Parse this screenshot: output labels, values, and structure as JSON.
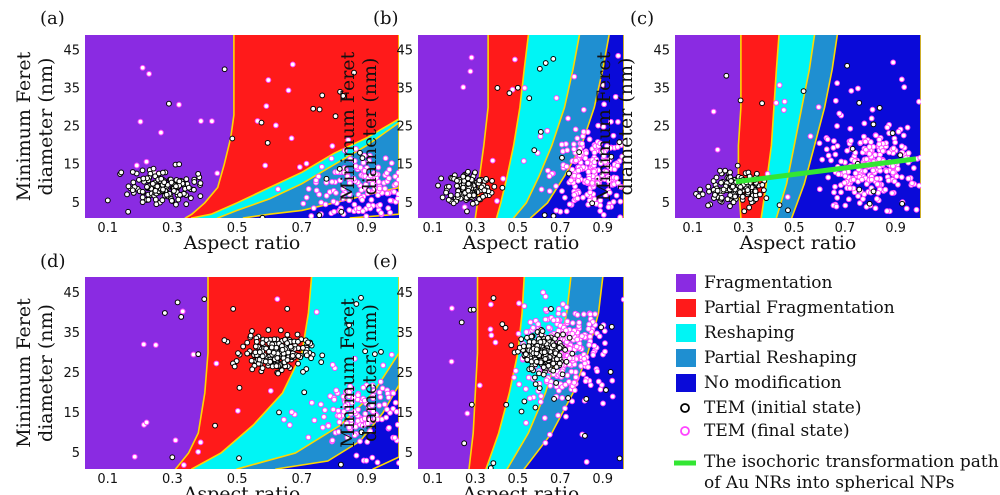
{
  "chart_data": [
    {
      "type": "heatmap",
      "panel_label": "(a)",
      "xlabel": "Aspect ratio",
      "ylabel": "Minimum Feret diameter (nm)",
      "xlim": [
        0.03,
        1.0
      ],
      "ylim": [
        1,
        49
      ],
      "x_ticks": [
        0.1,
        0.3,
        0.5,
        0.7,
        0.9
      ],
      "y_ticks": [
        5,
        15,
        25,
        35,
        45
      ],
      "regions": [
        {
          "class": "Fragmentation",
          "boundary": [
            [
              0.49,
              49
            ],
            [
              0.49,
              28
            ],
            [
              0.48,
              22
            ],
            [
              0.46,
              15
            ],
            [
              0.44,
              9
            ],
            [
              0.4,
              5
            ],
            [
              0.36,
              2
            ],
            [
              0.34,
              1
            ]
          ]
        },
        {
          "class": "Partial Fragmentation",
          "boundary": [
            [
              1.0,
              49
            ],
            [
              1.0,
              27
            ],
            [
              0.9,
              22
            ],
            [
              0.8,
              18
            ],
            [
              0.7,
              13
            ],
            [
              0.6,
              9
            ],
            [
              0.5,
              5
            ],
            [
              0.42,
              2
            ],
            [
              0.36,
              1
            ]
          ]
        },
        {
          "class": "Reshaping",
          "boundary": [
            [
              1.0,
              26
            ],
            [
              0.9,
              20
            ],
            [
              0.8,
              15
            ],
            [
              0.7,
              10
            ],
            [
              0.6,
              6
            ],
            [
              0.5,
              3
            ],
            [
              0.44,
              1
            ]
          ]
        },
        {
          "class": "Partial Reshaping",
          "boundary": [
            [
              1.0,
              9
            ],
            [
              0.9,
              7
            ],
            [
              0.8,
              5
            ],
            [
              0.7,
              3
            ],
            [
              0.6,
              2
            ],
            [
              0.52,
              1
            ]
          ]
        },
        {
          "class": "No modification",
          "boundary": [
            [
              1.0,
              2
            ],
            [
              0.85,
              1
            ]
          ]
        }
      ],
      "tem_initial_cluster": {
        "x_center": 0.27,
        "y_center": 9,
        "n": 150
      },
      "tem_final_cluster": {
        "x_center": 0.9,
        "y_center": 9,
        "n": 180
      }
    },
    {
      "type": "heatmap",
      "panel_label": "(b)",
      "xlabel": "Aspect ratio",
      "ylabel": "Minimum Feret diameter (nm)",
      "xlim": [
        0.03,
        1.0
      ],
      "ylim": [
        1,
        49
      ],
      "x_ticks": [
        0.1,
        0.3,
        0.5,
        0.7,
        0.9
      ],
      "y_ticks": [
        5,
        15,
        25,
        35,
        45
      ],
      "regions": [
        {
          "class": "Fragmentation",
          "boundary": [
            [
              0.36,
              49
            ],
            [
              0.36,
              30
            ],
            [
              0.34,
              20
            ],
            [
              0.32,
              12
            ],
            [
              0.31,
              5
            ],
            [
              0.3,
              1
            ]
          ]
        },
        {
          "class": "Partial Fragmentation",
          "boundary": [
            [
              0.55,
              49
            ],
            [
              0.53,
              40
            ],
            [
              0.51,
              30
            ],
            [
              0.48,
              20
            ],
            [
              0.45,
              12
            ],
            [
              0.42,
              5
            ],
            [
              0.4,
              1
            ]
          ]
        },
        {
          "class": "Reshaping",
          "boundary": [
            [
              0.79,
              49
            ],
            [
              0.76,
              40
            ],
            [
              0.72,
              30
            ],
            [
              0.66,
              20
            ],
            [
              0.6,
              12
            ],
            [
              0.54,
              5
            ],
            [
              0.48,
              1
            ]
          ]
        },
        {
          "class": "Partial Reshaping",
          "boundary": [
            [
              0.93,
              49
            ],
            [
              0.9,
              40
            ],
            [
              0.86,
              30
            ],
            [
              0.8,
              20
            ],
            [
              0.72,
              12
            ],
            [
              0.64,
              5
            ],
            [
              0.56,
              1
            ]
          ]
        },
        {
          "class": "No modification",
          "boundary": [
            [
              1.0,
              49
            ],
            [
              1.0,
              1
            ]
          ]
        }
      ],
      "tem_initial_cluster": {
        "x_center": 0.27,
        "y_center": 9,
        "n": 150
      },
      "tem_final_cluster": {
        "x_center": 0.85,
        "y_center": 13,
        "n": 220
      }
    },
    {
      "type": "heatmap",
      "panel_label": "(c)",
      "xlabel": "Aspect ratio",
      "ylabel": "Minimum Feret diameter (nm)",
      "xlim": [
        0.03,
        1.0
      ],
      "ylim": [
        1,
        49
      ],
      "x_ticks": [
        0.1,
        0.3,
        0.5,
        0.7,
        0.9
      ],
      "y_ticks": [
        5,
        15,
        25,
        35,
        45
      ],
      "regions": [
        {
          "class": "Fragmentation",
          "boundary": [
            [
              0.29,
              49
            ],
            [
              0.29,
              30
            ],
            [
              0.28,
              20
            ],
            [
              0.28,
              10
            ],
            [
              0.29,
              1
            ]
          ]
        },
        {
          "class": "Partial Fragmentation",
          "boundary": [
            [
              0.44,
              49
            ],
            [
              0.43,
              40
            ],
            [
              0.42,
              30
            ],
            [
              0.41,
              20
            ],
            [
              0.39,
              10
            ],
            [
              0.37,
              1
            ]
          ]
        },
        {
          "class": "Reshaping",
          "boundary": [
            [
              0.58,
              49
            ],
            [
              0.56,
              40
            ],
            [
              0.53,
              30
            ],
            [
              0.5,
              20
            ],
            [
              0.47,
              10
            ],
            [
              0.43,
              1
            ]
          ]
        },
        {
          "class": "Partial Reshaping",
          "boundary": [
            [
              0.67,
              49
            ],
            [
              0.65,
              40
            ],
            [
              0.62,
              30
            ],
            [
              0.58,
              20
            ],
            [
              0.54,
              10
            ],
            [
              0.49,
              1
            ]
          ]
        },
        {
          "class": "No modification",
          "boundary": [
            [
              1.0,
              49
            ],
            [
              1.0,
              1
            ]
          ]
        }
      ],
      "isochoric_path": [
        [
          0.27,
          10.5
        ],
        [
          0.98,
          16.5
        ]
      ],
      "tem_initial_cluster": {
        "x_center": 0.27,
        "y_center": 9,
        "n": 150
      },
      "tem_final_cluster": {
        "x_center": 0.8,
        "y_center": 14,
        "n": 240
      }
    },
    {
      "type": "heatmap",
      "panel_label": "(d)",
      "xlabel": "Aspect ratio",
      "ylabel": "Minimum Feret diameter (nm)",
      "xlim": [
        0.03,
        1.0
      ],
      "ylim": [
        1,
        49
      ],
      "x_ticks": [
        0.1,
        0.3,
        0.5,
        0.7,
        0.9
      ],
      "y_ticks": [
        5,
        15,
        25,
        35,
        45
      ],
      "regions": [
        {
          "class": "Fragmentation",
          "boundary": [
            [
              0.41,
              49
            ],
            [
              0.41,
              30
            ],
            [
              0.4,
              20
            ],
            [
              0.38,
              10
            ],
            [
              0.35,
              5
            ],
            [
              0.31,
              1
            ]
          ]
        },
        {
          "class": "Partial Fragmentation",
          "boundary": [
            [
              0.73,
              49
            ],
            [
              0.72,
              40
            ],
            [
              0.7,
              30
            ],
            [
              0.64,
              20
            ],
            [
              0.55,
              12
            ],
            [
              0.45,
              5
            ],
            [
              0.36,
              1
            ]
          ]
        },
        {
          "class": "Reshaping",
          "boundary": [
            [
              1.0,
              49
            ],
            [
              1.0,
              30
            ],
            [
              0.92,
              20
            ],
            [
              0.82,
              12
            ],
            [
              0.68,
              5
            ],
            [
              0.5,
              1
            ]
          ]
        },
        {
          "class": "Partial Reshaping",
          "boundary": [
            [
              1.0,
              22
            ],
            [
              0.95,
              15
            ],
            [
              0.88,
              8
            ],
            [
              0.78,
              3
            ],
            [
              0.62,
              1
            ]
          ]
        },
        {
          "class": "No modification",
          "boundary": [
            [
              1.0,
              4
            ],
            [
              0.92,
              1
            ]
          ]
        }
      ],
      "tem_initial_cluster": {
        "x_center": 0.62,
        "y_center": 30,
        "n": 200
      },
      "tem_final_cluster": {
        "x_center": 0.9,
        "y_center": 15,
        "n": 160
      }
    },
    {
      "type": "heatmap",
      "panel_label": "(e)",
      "xlabel": "Aspect ratio",
      "ylabel": "Minimum Feret diameter (nm)",
      "xlim": [
        0.03,
        1.0
      ],
      "ylim": [
        1,
        49
      ],
      "x_ticks": [
        0.1,
        0.3,
        0.5,
        0.7,
        0.9
      ],
      "y_ticks": [
        5,
        15,
        25,
        35,
        45
      ],
      "regions": [
        {
          "class": "Fragmentation",
          "boundary": [
            [
              0.31,
              49
            ],
            [
              0.31,
              30
            ],
            [
              0.3,
              20
            ],
            [
              0.29,
              10
            ],
            [
              0.27,
              1
            ]
          ]
        },
        {
          "class": "Partial Fragmentation",
          "boundary": [
            [
              0.53,
              49
            ],
            [
              0.52,
              40
            ],
            [
              0.5,
              30
            ],
            [
              0.46,
              20
            ],
            [
              0.41,
              10
            ],
            [
              0.35,
              1
            ]
          ]
        },
        {
          "class": "Reshaping",
          "boundary": [
            [
              0.75,
              49
            ],
            [
              0.73,
              40
            ],
            [
              0.69,
              30
            ],
            [
              0.63,
              20
            ],
            [
              0.55,
              10
            ],
            [
              0.45,
              1
            ]
          ]
        },
        {
          "class": "Partial Reshaping",
          "boundary": [
            [
              0.9,
              49
            ],
            [
              0.88,
              40
            ],
            [
              0.83,
              30
            ],
            [
              0.76,
              20
            ],
            [
              0.66,
              10
            ],
            [
              0.53,
              1
            ]
          ]
        },
        {
          "class": "No modification",
          "boundary": [
            [
              1.0,
              49
            ],
            [
              1.0,
              1
            ]
          ]
        }
      ],
      "tem_initial_cluster": {
        "x_center": 0.62,
        "y_center": 30,
        "n": 220
      },
      "tem_final_cluster": {
        "x_center": 0.72,
        "y_center": 31,
        "n": 300
      }
    }
  ],
  "legend": {
    "items": [
      {
        "type": "swatch",
        "color": "#8a2be2",
        "label": "Fragmentation"
      },
      {
        "type": "swatch",
        "color": "#ff1a1a",
        "label": "Partial Fragmentation"
      },
      {
        "type": "swatch",
        "color": "#00f5f5",
        "label": "Reshaping"
      },
      {
        "type": "swatch",
        "color": "#1f8fd1",
        "label": "Partial Reshaping"
      },
      {
        "type": "swatch",
        "color": "#0a0ad9",
        "label": "No modification"
      },
      {
        "type": "circle",
        "color": "#000000",
        "label": "TEM (initial state)"
      },
      {
        "type": "circle",
        "color": "#ff44ff",
        "label": "TEM (final state)"
      },
      {
        "type": "line",
        "color": "#33e633",
        "label": "The isochoric transformation path of Au NRs into spherical NPs"
      }
    ]
  },
  "colors": {
    "Fragmentation": "#8a2be2",
    "Partial Fragmentation": "#ff1a1a",
    "Reshaping": "#00f5f5",
    "Partial Reshaping": "#1f8fd1",
    "No modification": "#0a0ad9",
    "boundary": "#ffd700",
    "tem_initial": "#000000",
    "tem_final": "#ff44ff",
    "isochoric": "#33e633"
  }
}
